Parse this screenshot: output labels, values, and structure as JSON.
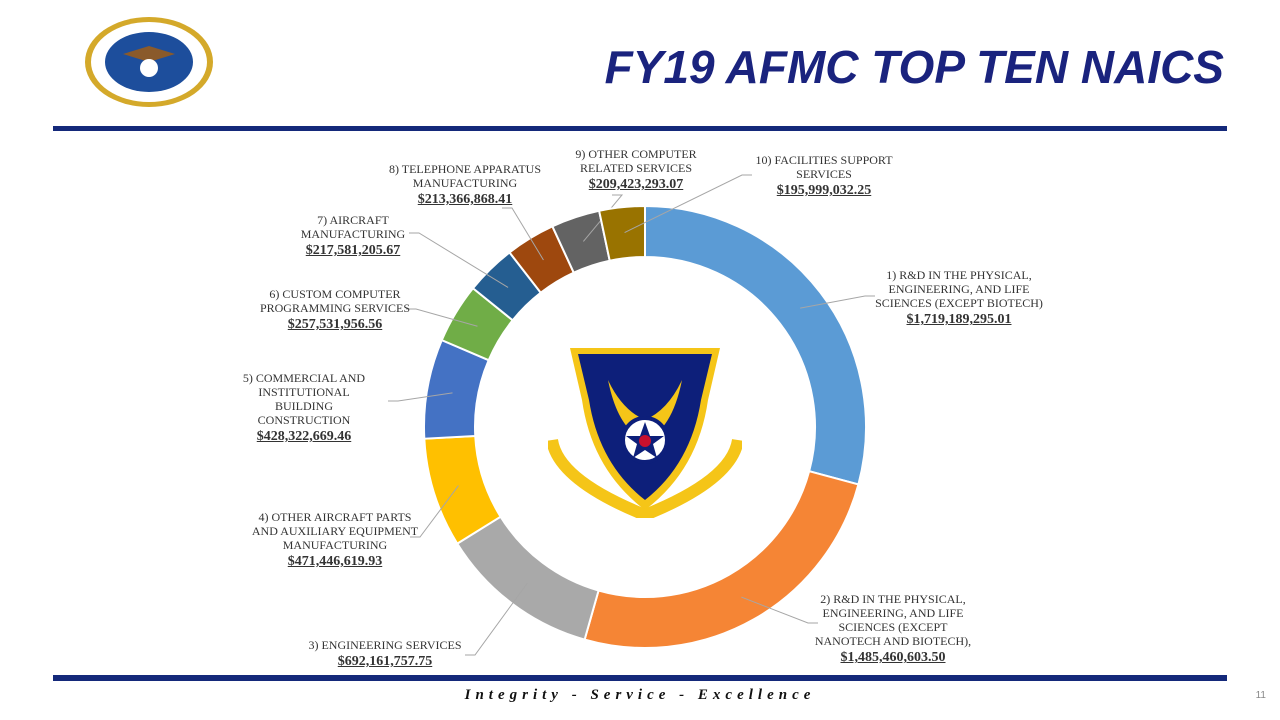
{
  "header": {
    "title": "FY19 AFMC TOP TEN NAICS"
  },
  "footer": {
    "motto": "Integrity - Service - Excellence",
    "page": "11"
  },
  "logos": {
    "seal": "DEPARTMENT OF THE AIR FORCE",
    "center": "AIR FORCE MATERIEL COMMAND"
  },
  "chart_data": {
    "type": "pie",
    "donut": true,
    "title": "FY19 AFMC TOP TEN NAICS",
    "categories": [
      "1) R&D IN THE PHYSICAL, ENGINEERING, AND LIFE SCIENCES (EXCEPT BIOTECH)",
      "2) R&D IN THE PHYSICAL, ENGINEERING, AND LIFE SCIENCES (EXCEPT NANOTECH AND BIOTECH),",
      "3) ENGINEERING SERVICES",
      "4) OTHER AIRCRAFT PARTS AND AUXILIARY EQUIPMENT MANUFACTURING",
      "5) COMMERCIAL AND INSTITUTIONAL BUILDING CONSTRUCTION",
      "6) CUSTOM COMPUTER PROGRAMMING SERVICES",
      "7) AIRCRAFT MANUFACTURING",
      "8) TELEPHONE APPARATUS MANUFACTURING",
      "9) OTHER COMPUTER RELATED SERVICES",
      "10) FACILITIES SUPPORT SERVICES"
    ],
    "values": [
      1719189295.01,
      1485460603.5,
      692161757.75,
      471446619.93,
      428322669.46,
      257531956.56,
      217581205.67,
      213366868.41,
      209423293.07,
      195999032.25
    ],
    "value_labels": [
      "$1,719,189,295.01",
      "$1,485,460,603.50",
      "$692,161,757.75",
      "$471,446,619.93",
      "$428,322,669.46",
      "$257,531,956.56",
      "$217,581,205.67",
      "$213,366,868.41",
      "$209,423,293.07",
      "$195,999,032.25"
    ],
    "colors": [
      "#5b9bd5",
      "#f58535",
      "#a9a9a9",
      "#ffc000",
      "#4472c4",
      "#70ad47",
      "#255e91",
      "#9e480e",
      "#636363",
      "#997300"
    ]
  }
}
